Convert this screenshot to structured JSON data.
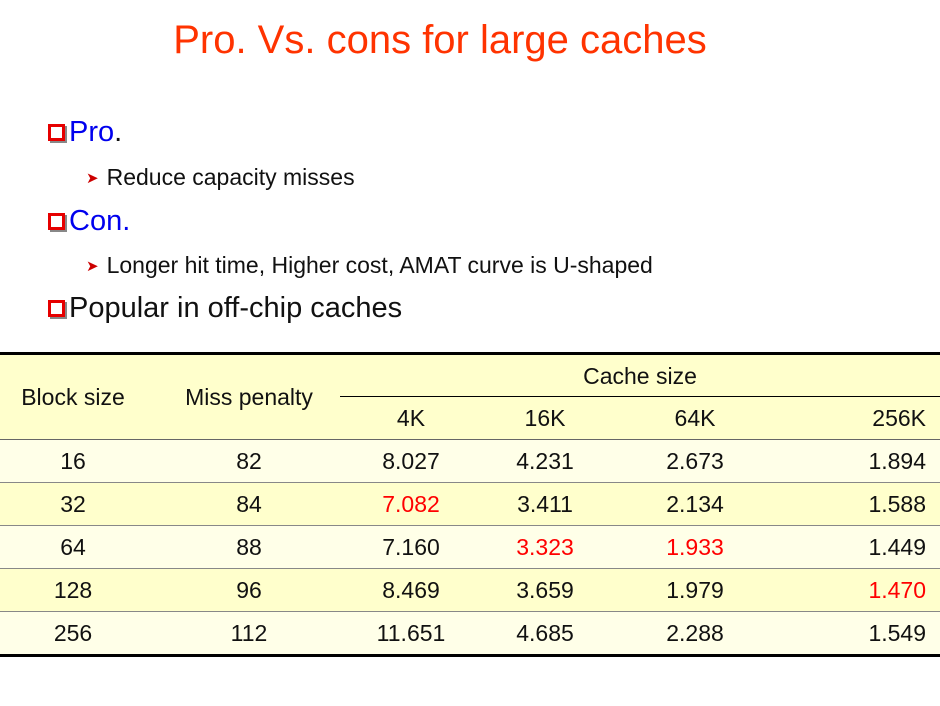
{
  "title": "Pro. Vs. cons for large caches",
  "bullets": {
    "pro_label": "Pro",
    "pro_dot": ".",
    "pro_sub": "Reduce capacity misses",
    "con_label": "Con.",
    "con_sub": "Longer hit time,  Higher cost, AMAT curve is U-shaped",
    "popular": "Popular in off-chip caches"
  },
  "table": {
    "headers": {
      "block_size": "Block size",
      "miss_penalty": "Miss penalty",
      "cache_size": "Cache size",
      "sizes": [
        "4K",
        "16K",
        "64K",
        "256K"
      ]
    },
    "rows": [
      {
        "block": "16",
        "penalty": "82",
        "values": [
          "8.027",
          "4.231",
          "2.673",
          "1.894"
        ]
      },
      {
        "block": "32",
        "penalty": "84",
        "values": [
          "7.082",
          "3.411",
          "2.134",
          "1.588"
        ]
      },
      {
        "block": "64",
        "penalty": "88",
        "values": [
          "7.160",
          "3.323",
          "1.933",
          "1.449"
        ]
      },
      {
        "block": "128",
        "penalty": "96",
        "values": [
          "8.469",
          "3.659",
          "1.979",
          "1.470"
        ]
      },
      {
        "block": "256",
        "penalty": "112",
        "values": [
          "11.651",
          "4.685",
          "2.288",
          "1.549"
        ]
      }
    ],
    "highlight_color": "#ff0000"
  }
}
